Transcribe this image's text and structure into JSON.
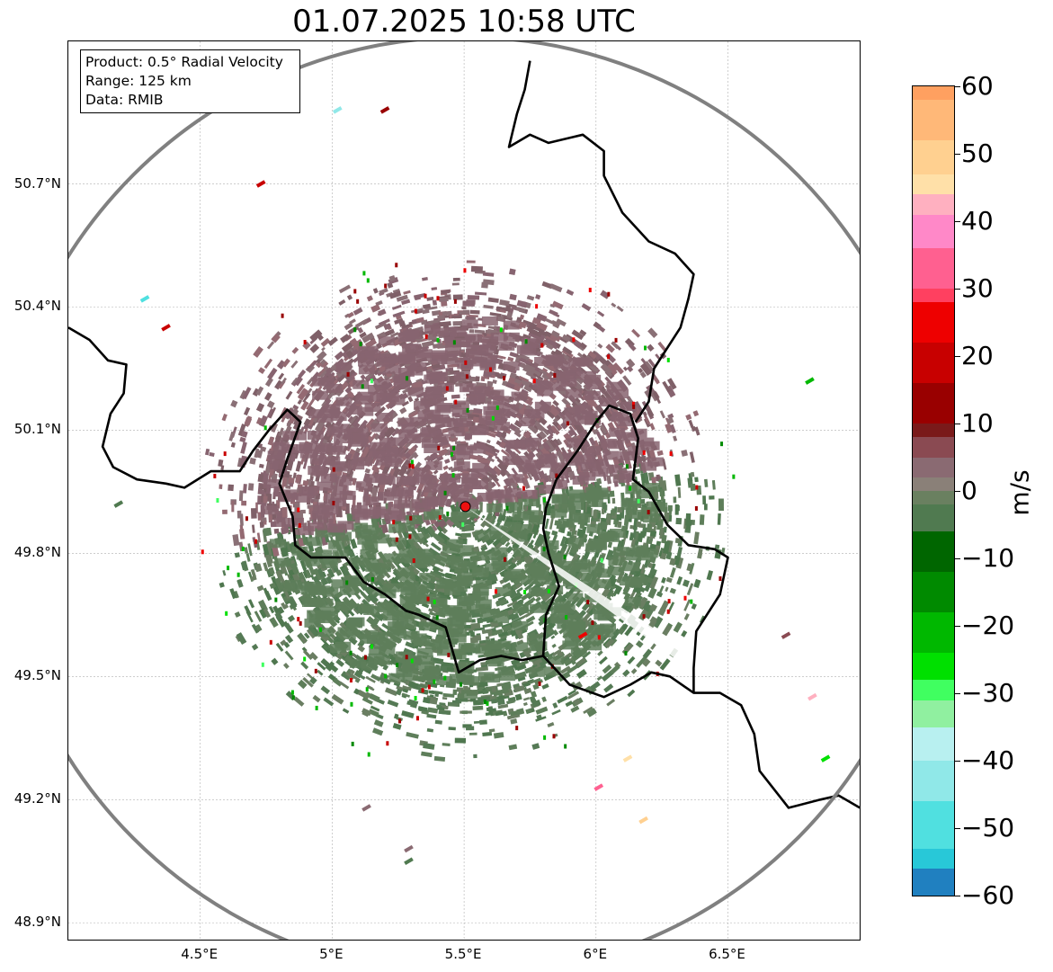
{
  "title": "01.07.2025 10:58 UTC",
  "info": {
    "product": "Product: 0.5° Radial Velocity",
    "range": "Range: 125 km",
    "data": "Data: RMIB"
  },
  "axes": {
    "lat_labels": [
      "50.7°N",
      "50.4°N",
      "50.1°N",
      "49.8°N",
      "49.5°N",
      "49.2°N",
      "48.9°N"
    ],
    "lat_values": [
      50.7,
      50.4,
      50.1,
      49.8,
      49.5,
      49.2,
      48.9
    ],
    "lon_labels": [
      "4.5°E",
      "5°E",
      "5.5°E",
      "6°E",
      "6.5°E"
    ],
    "lon_values": [
      4.5,
      5.0,
      5.5,
      6.0,
      6.5
    ],
    "lon_range": [
      4.0,
      7.0
    ],
    "lat_range": [
      48.8,
      51.0
    ]
  },
  "radar_site": {
    "lon": 5.505,
    "lat": 49.914
  },
  "colorbar": {
    "unit": "m/s",
    "ticks": [
      "60",
      "50",
      "40",
      "30",
      "20",
      "10",
      "0",
      "−10",
      "−20",
      "−30",
      "−40",
      "−50",
      "−60"
    ],
    "tick_values": [
      60,
      50,
      40,
      30,
      20,
      10,
      0,
      -10,
      -20,
      -30,
      -40,
      -50,
      -60
    ],
    "range": [
      -60,
      60
    ],
    "stops": [
      {
        "from": 58,
        "to": 60,
        "color": "#ffa060"
      },
      {
        "from": 52,
        "to": 58,
        "color": "#ffb878"
      },
      {
        "from": 47,
        "to": 52,
        "color": "#ffd090"
      },
      {
        "from": 44,
        "to": 47,
        "color": "#ffe0a8"
      },
      {
        "from": 41,
        "to": 44,
        "color": "#ffb0c0"
      },
      {
        "from": 36,
        "to": 41,
        "color": "#ff88c8"
      },
      {
        "from": 30,
        "to": 36,
        "color": "#ff6090"
      },
      {
        "from": 28,
        "to": 30,
        "color": "#ff4060"
      },
      {
        "from": 22,
        "to": 28,
        "color": "#ee0000"
      },
      {
        "from": 16,
        "to": 22,
        "color": "#c80000"
      },
      {
        "from": 10,
        "to": 16,
        "color": "#990000"
      },
      {
        "from": 8,
        "to": 10,
        "color": "#7a1a1a"
      },
      {
        "from": 5,
        "to": 8,
        "color": "#8a4a52"
      },
      {
        "from": 2,
        "to": 5,
        "color": "#8a6a72"
      },
      {
        "from": 0,
        "to": 2,
        "color": "#8a8078"
      },
      {
        "from": -2,
        "to": 0,
        "color": "#6a8060"
      },
      {
        "from": -6,
        "to": -2,
        "color": "#507a50"
      },
      {
        "from": -12,
        "to": -6,
        "color": "#006600"
      },
      {
        "from": -18,
        "to": -12,
        "color": "#008a00"
      },
      {
        "from": -24,
        "to": -18,
        "color": "#00b800"
      },
      {
        "from": -28,
        "to": -24,
        "color": "#00e000"
      },
      {
        "from": -31,
        "to": -28,
        "color": "#40ff60"
      },
      {
        "from": -35,
        "to": -31,
        "color": "#90f0a0"
      },
      {
        "from": -40,
        "to": -35,
        "color": "#b8f0f0"
      },
      {
        "from": -46,
        "to": -40,
        "color": "#90e8e8"
      },
      {
        "from": -53,
        "to": -46,
        "color": "#50e0e0"
      },
      {
        "from": -56,
        "to": -53,
        "color": "#28c8d8"
      },
      {
        "from": -60,
        "to": -56,
        "color": "#2080c0"
      }
    ]
  },
  "colors": {
    "approaching": "#5e7e5a",
    "receding": "#876470",
    "border": "#000000",
    "range_ring": "#808080",
    "site_marker": "#ee1111"
  },
  "borders": [
    [
      [
        4.0,
        50.35
      ],
      [
        4.08,
        50.32
      ],
      [
        4.15,
        50.27
      ],
      [
        4.22,
        50.26
      ],
      [
        4.21,
        50.19
      ],
      [
        4.16,
        50.14
      ],
      [
        4.13,
        50.06
      ],
      [
        4.17,
        50.01
      ],
      [
        4.26,
        49.98
      ],
      [
        4.37,
        49.97
      ],
      [
        4.44,
        49.96
      ],
      [
        4.54,
        50.0
      ],
      [
        4.65,
        50.0
      ],
      [
        4.7,
        50.05
      ],
      [
        4.76,
        50.1
      ],
      [
        4.83,
        50.15
      ],
      [
        4.88,
        50.12
      ],
      [
        4.83,
        50.03
      ],
      [
        4.8,
        49.97
      ],
      [
        4.85,
        49.89
      ],
      [
        4.86,
        49.82
      ],
      [
        4.92,
        49.79
      ],
      [
        5.05,
        49.79
      ],
      [
        5.12,
        49.73
      ],
      [
        5.2,
        49.7
      ],
      [
        5.28,
        49.66
      ],
      [
        5.33,
        49.65
      ],
      [
        5.43,
        49.62
      ],
      [
        5.48,
        49.51
      ],
      [
        5.56,
        49.54
      ],
      [
        5.64,
        49.55
      ],
      [
        5.72,
        49.54
      ],
      [
        5.8,
        49.55
      ],
      [
        5.9,
        49.48
      ],
      [
        6.03,
        49.45
      ],
      [
        6.13,
        49.48
      ],
      [
        6.21,
        49.51
      ],
      [
        6.28,
        49.5
      ],
      [
        6.37,
        49.46
      ],
      [
        6.47,
        49.46
      ],
      [
        6.55,
        49.43
      ],
      [
        6.6,
        49.36
      ],
      [
        6.62,
        49.27
      ],
      [
        6.73,
        49.18
      ],
      [
        6.85,
        49.2
      ],
      [
        6.92,
        49.21
      ],
      [
        7.0,
        49.18
      ]
    ],
    [
      [
        5.8,
        49.55
      ],
      [
        5.81,
        49.65
      ],
      [
        5.86,
        49.72
      ],
      [
        5.82,
        49.8
      ],
      [
        5.8,
        49.86
      ],
      [
        5.81,
        49.91
      ],
      [
        5.85,
        49.98
      ],
      [
        5.93,
        50.05
      ],
      [
        6.0,
        50.12
      ],
      [
        6.05,
        50.16
      ],
      [
        6.13,
        50.14
      ],
      [
        6.16,
        50.08
      ],
      [
        6.14,
        49.98
      ],
      [
        6.2,
        49.95
      ],
      [
        6.27,
        49.87
      ],
      [
        6.35,
        49.82
      ],
      [
        6.45,
        49.81
      ],
      [
        6.5,
        49.79
      ],
      [
        6.47,
        49.7
      ],
      [
        6.38,
        49.61
      ],
      [
        6.37,
        49.52
      ],
      [
        6.37,
        49.46
      ]
    ],
    [
      [
        6.15,
        50.12
      ],
      [
        6.2,
        50.17
      ],
      [
        6.22,
        50.25
      ],
      [
        6.27,
        50.3
      ],
      [
        6.32,
        50.35
      ],
      [
        6.35,
        50.42
      ],
      [
        6.37,
        50.48
      ],
      [
        6.3,
        50.53
      ],
      [
        6.2,
        50.56
      ],
      [
        6.1,
        50.63
      ],
      [
        6.03,
        50.72
      ],
      [
        6.03,
        50.78
      ],
      [
        5.95,
        50.82
      ],
      [
        5.82,
        50.8
      ],
      [
        5.75,
        50.82
      ],
      [
        5.67,
        50.79
      ],
      [
        5.7,
        50.87
      ],
      [
        5.73,
        50.93
      ],
      [
        5.75,
        51.0
      ]
    ]
  ],
  "range_ring_km": 125,
  "echoes": [
    {
      "lon": 5.2,
      "lat": 50.88,
      "v": 12
    },
    {
      "lon": 5.02,
      "lat": 50.88,
      "v": -45
    },
    {
      "lon": 4.73,
      "lat": 50.7,
      "v": 18
    },
    {
      "lon": 4.29,
      "lat": 50.42,
      "v": -50
    },
    {
      "lon": 4.37,
      "lat": 50.35,
      "v": 20
    },
    {
      "lon": 5.29,
      "lat": 49.08,
      "v": 3
    },
    {
      "lon": 5.29,
      "lat": 49.05,
      "v": -3
    },
    {
      "lon": 5.13,
      "lat": 49.18,
      "v": 4
    },
    {
      "lon": 4.19,
      "lat": 49.92,
      "v": -4
    },
    {
      "lon": 6.82,
      "lat": 49.45,
      "v": 42
    },
    {
      "lon": 6.87,
      "lat": 49.3,
      "v": -28
    },
    {
      "lon": 6.81,
      "lat": 50.22,
      "v": -20
    },
    {
      "lon": 6.12,
      "lat": 49.3,
      "v": 45
    },
    {
      "lon": 6.18,
      "lat": 49.15,
      "v": 50
    },
    {
      "lon": 5.95,
      "lat": 49.6,
      "v": 22
    },
    {
      "lon": 6.01,
      "lat": 49.23,
      "v": 35
    },
    {
      "lon": 6.72,
      "lat": 49.6,
      "v": 5
    }
  ]
}
